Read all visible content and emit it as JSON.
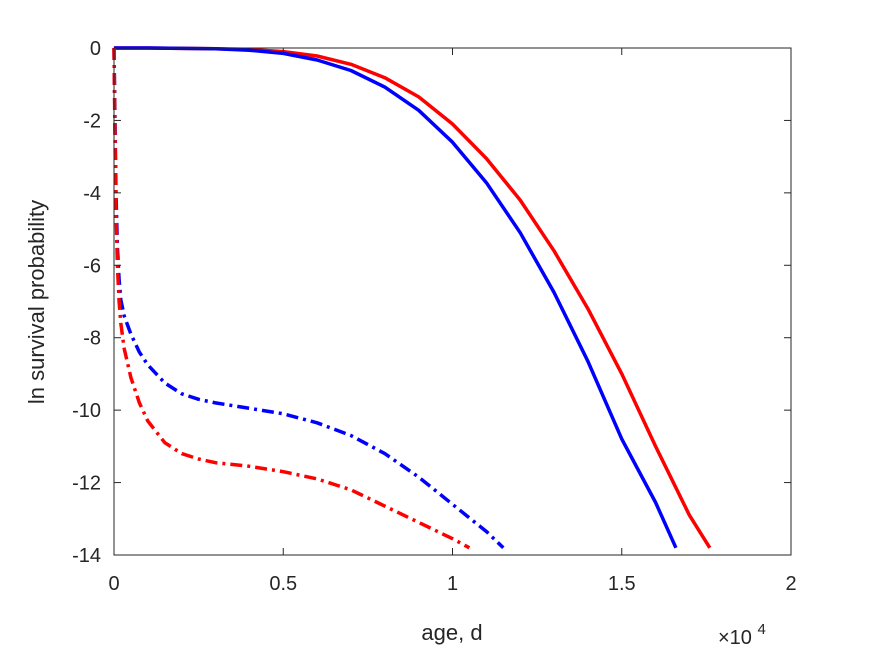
{
  "chart_data": {
    "type": "line",
    "xlabel": "age, d",
    "ylabel": "ln survival probability",
    "x_multiplier_label": "×10",
    "x_multiplier_exponent": "4",
    "xlim": [
      0,
      20000
    ],
    "ylim": [
      -14,
      0
    ],
    "x_ticks": [
      0,
      5000,
      10000,
      15000,
      20000
    ],
    "x_tick_labels": [
      "0",
      "0.5",
      "1",
      "1.5",
      "2"
    ],
    "y_ticks": [
      0,
      -2,
      -4,
      -6,
      -8,
      -10,
      -12,
      -14
    ],
    "y_tick_labels": [
      "0",
      "-2",
      "-4",
      "-6",
      "-8",
      "-10",
      "-12",
      "-14"
    ],
    "grid": false,
    "series": [
      {
        "color": "#ff0000",
        "style": "solid",
        "x": [
          0,
          1000,
          2000,
          3000,
          4000,
          5000,
          6000,
          7000,
          8000,
          9000,
          10000,
          11000,
          12000,
          13000,
          14000,
          15000,
          16000,
          17000,
          17600
        ],
        "y": [
          0,
          0,
          -0.01,
          -0.02,
          -0.04,
          -0.1,
          -0.22,
          -0.45,
          -0.82,
          -1.35,
          -2.1,
          -3.05,
          -4.2,
          -5.6,
          -7.2,
          -9.0,
          -11.0,
          -12.9,
          -13.8
        ]
      },
      {
        "color": "#0000ff",
        "style": "solid",
        "x": [
          0,
          1000,
          2000,
          3000,
          4000,
          5000,
          6000,
          7000,
          8000,
          9000,
          10000,
          11000,
          12000,
          13000,
          14000,
          15000,
          16000,
          16600
        ],
        "y": [
          0,
          0,
          -0.01,
          -0.02,
          -0.06,
          -0.15,
          -0.33,
          -0.62,
          -1.08,
          -1.72,
          -2.6,
          -3.72,
          -5.1,
          -6.75,
          -8.65,
          -10.8,
          -12.55,
          -13.8
        ]
      },
      {
        "color": "#0000ff",
        "style": "dashdot",
        "x": [
          0,
          30,
          60,
          100,
          150,
          200,
          300,
          500,
          750,
          1000,
          1500,
          2000,
          2500,
          3000,
          4000,
          5000,
          6000,
          7000,
          8000,
          9000,
          10000,
          11000,
          11500
        ],
        "y": [
          0,
          -2.0,
          -4.0,
          -5.5,
          -6.4,
          -6.95,
          -7.4,
          -7.9,
          -8.4,
          -8.75,
          -9.25,
          -9.55,
          -9.7,
          -9.8,
          -9.95,
          -10.1,
          -10.35,
          -10.7,
          -11.2,
          -11.85,
          -12.6,
          -13.35,
          -13.8
        ]
      },
      {
        "color": "#ff0000",
        "style": "dashdot",
        "x": [
          0,
          30,
          60,
          100,
          150,
          200,
          300,
          500,
          750,
          1000,
          1500,
          2000,
          2500,
          3000,
          4000,
          5000,
          6000,
          7000,
          8000,
          9000,
          10000,
          10500
        ],
        "y": [
          0,
          -2.5,
          -4.5,
          -6.0,
          -7.0,
          -7.6,
          -8.3,
          -9.1,
          -9.8,
          -10.3,
          -10.9,
          -11.2,
          -11.35,
          -11.45,
          -11.55,
          -11.7,
          -11.9,
          -12.2,
          -12.65,
          -13.1,
          -13.55,
          -13.8
        ]
      }
    ]
  }
}
